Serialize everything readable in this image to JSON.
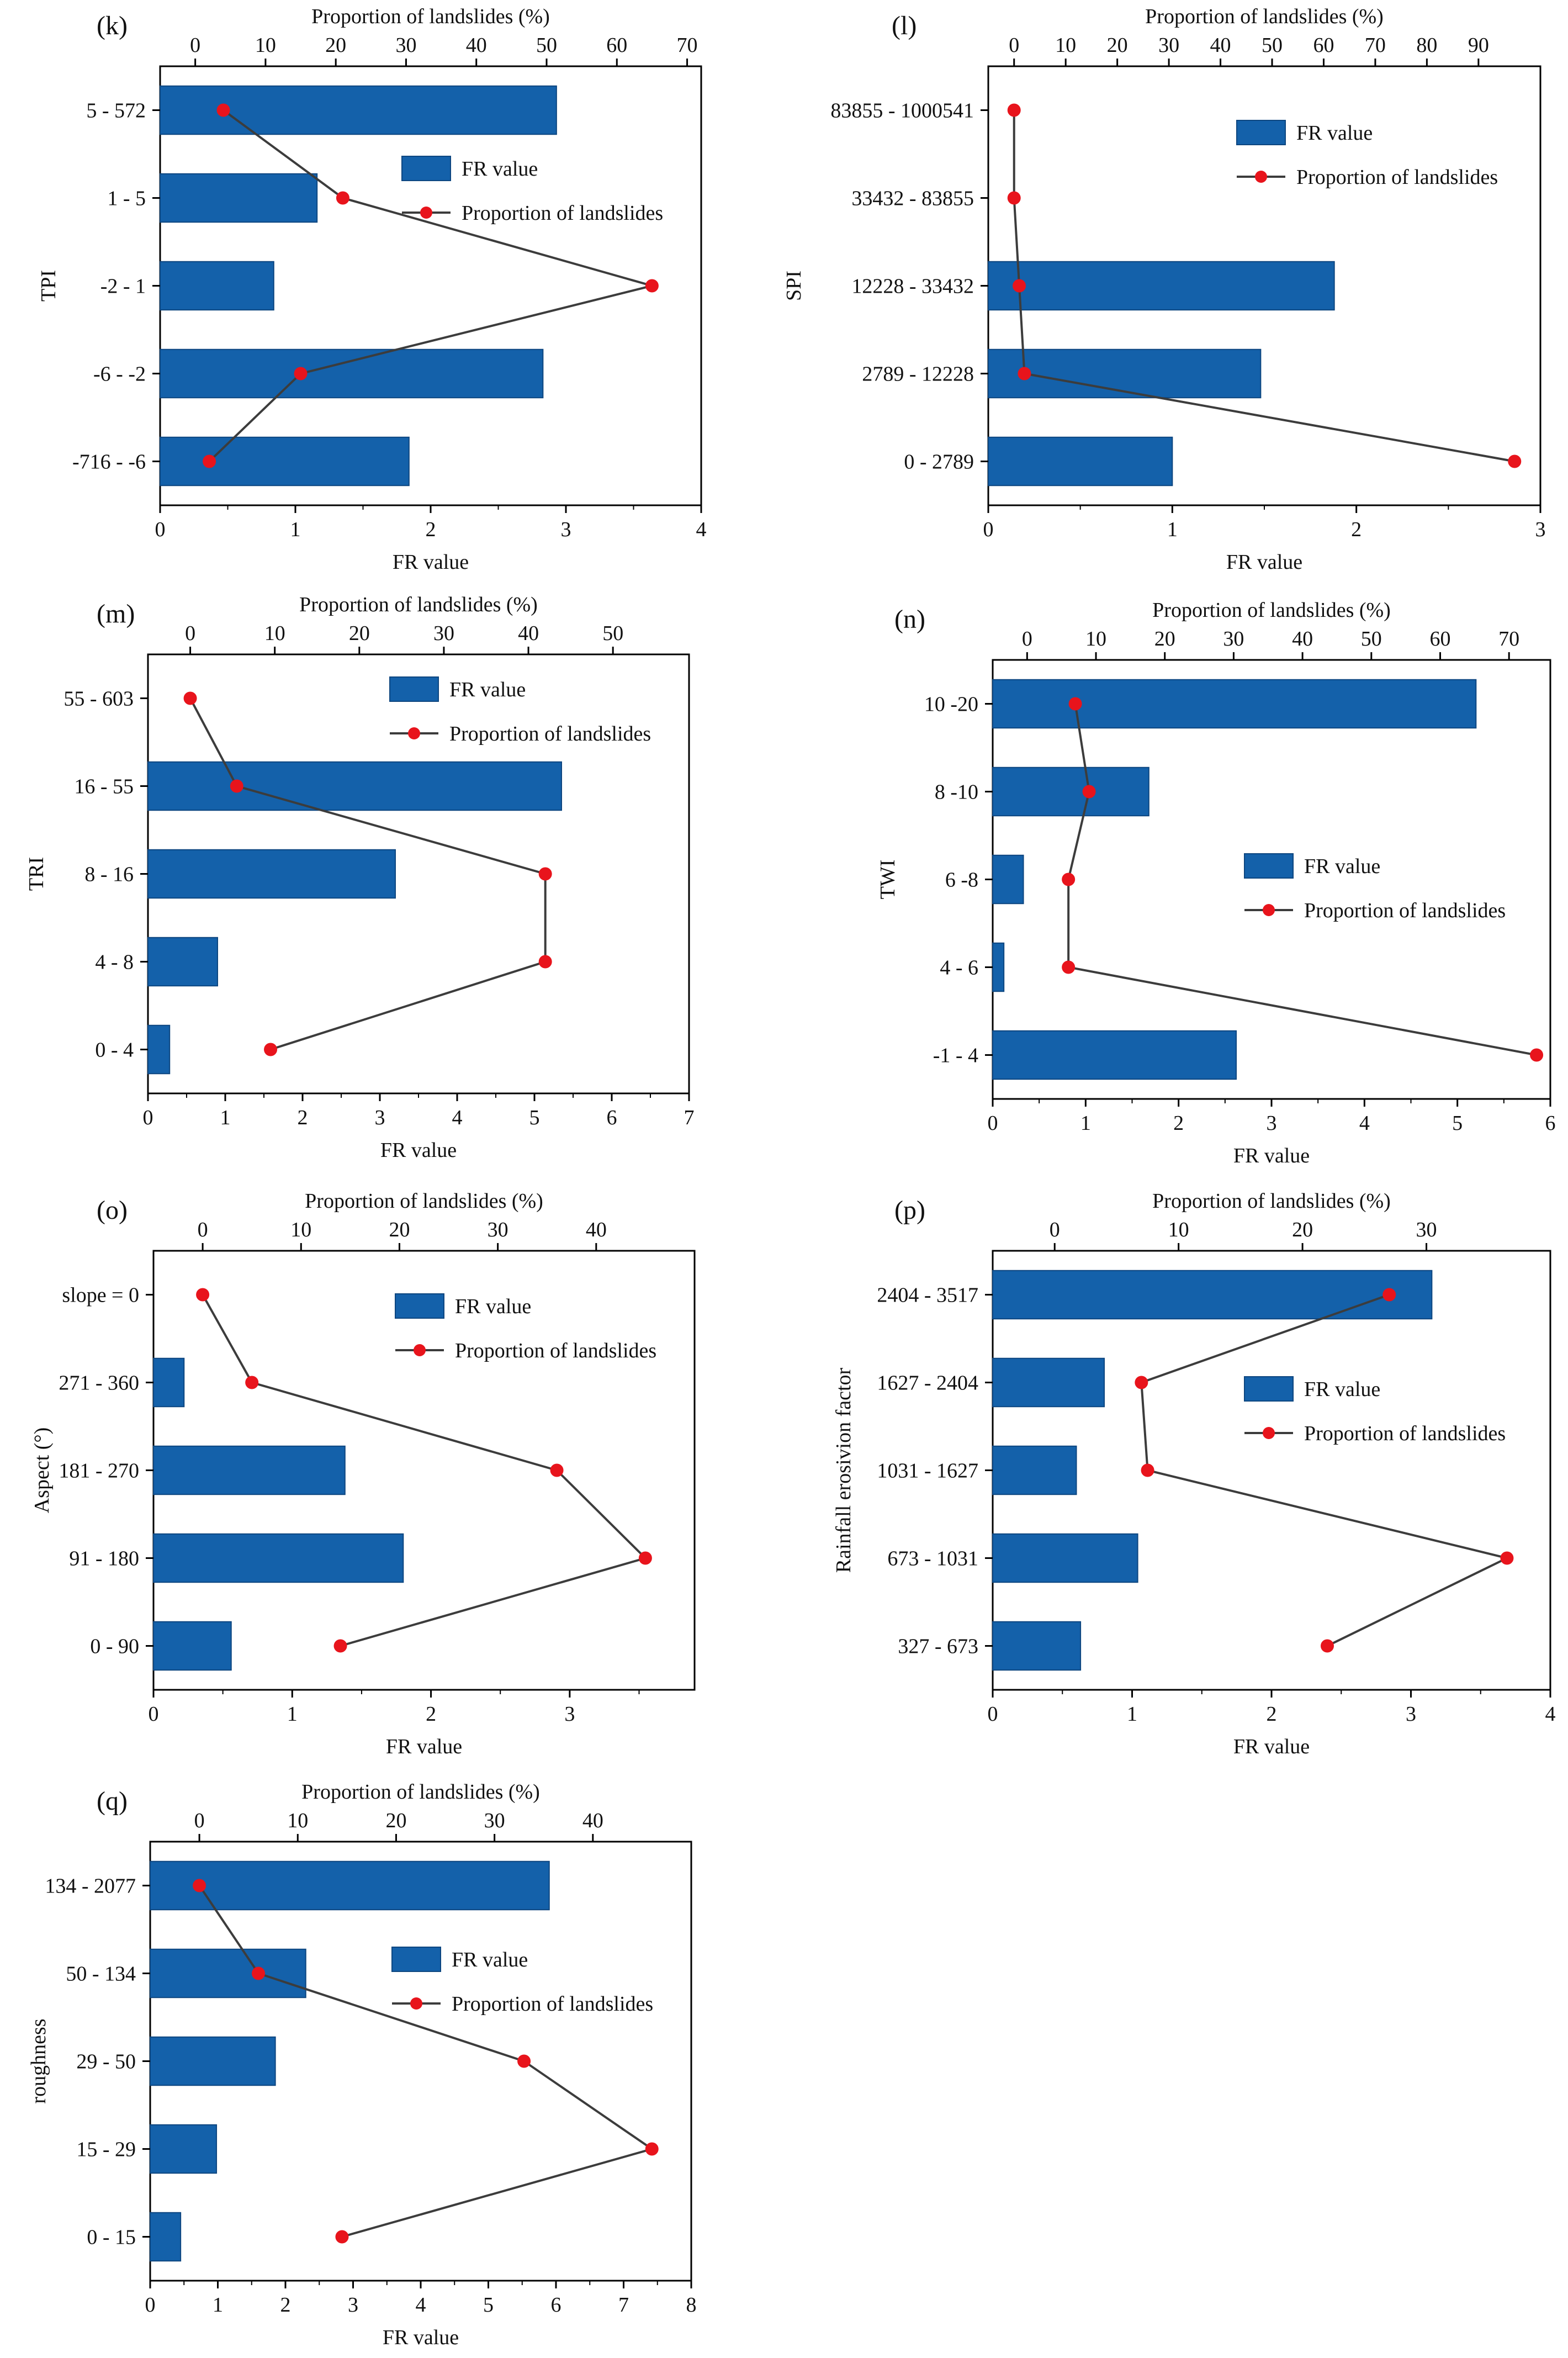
{
  "colors": {
    "bar": "#1461aa",
    "bar_stroke": "#0d4680",
    "line": "#3c3c3c",
    "marker": "#e8141c",
    "axis": "#000000"
  },
  "chart_data": [
    {
      "id": "k",
      "type": "bar+line",
      "panel_label": "(k)",
      "xlabel": "FR value",
      "x2label": "Proportion of landslides (%)",
      "ylabel": "TPI",
      "categories": [
        "5 - 572",
        "1 - 5",
        "-2 - 1",
        "-6 - -2",
        "-716 - -6"
      ],
      "series": [
        {
          "name": "FR value",
          "type": "bar",
          "axis": "bottom",
          "values": [
            2.93,
            1.16,
            0.84,
            2.83,
            1.84
          ]
        },
        {
          "name": "Proportion of landslides",
          "type": "line",
          "axis": "top",
          "values": [
            4,
            21,
            65,
            15,
            2
          ]
        }
      ],
      "xlim": [
        0,
        4
      ],
      "xticks": [
        "0",
        "1",
        "2",
        "3",
        "4"
      ],
      "x2lim": [
        -5,
        72
      ],
      "x2ticks": [
        "0",
        "10",
        "20",
        "30",
        "40",
        "50",
        "60",
        "70"
      ],
      "legend": [
        "FR value",
        "Proportion of landslides"
      ],
      "legend_position": "right-middle"
    },
    {
      "id": "l",
      "type": "bar+line",
      "panel_label": "(l)",
      "xlabel": "FR value",
      "x2label": "Proportion of landslides (%)",
      "ylabel": "SPI",
      "categories": [
        "83855 - 1000541",
        "33432 - 83855",
        "12228 - 33432",
        "2789 - 12228",
        "0 - 2789"
      ],
      "series": [
        {
          "name": "FR value",
          "type": "bar",
          "axis": "bottom",
          "values": [
            0,
            0,
            1.88,
            1.48,
            1.0
          ]
        },
        {
          "name": "Proportion of landslides",
          "type": "line",
          "axis": "top",
          "values": [
            0,
            0,
            1,
            2,
            97
          ]
        }
      ],
      "xlim": [
        0,
        3
      ],
      "xticks": [
        "0",
        "1",
        "2",
        "3"
      ],
      "x2lim": [
        -5,
        102
      ],
      "x2ticks": [
        "0",
        "10",
        "20",
        "30",
        "40",
        "50",
        "60",
        "70",
        "80",
        "90"
      ],
      "legend": [
        "FR value",
        "Proportion of landslides"
      ],
      "legend_position": "right-top"
    },
    {
      "id": "m",
      "type": "bar+line",
      "panel_label": "(m)",
      "xlabel": "FR value",
      "x2label": "Proportion of landslides (%)",
      "ylabel": "TRI",
      "categories": [
        "55 - 603",
        "16 - 55",
        "8 - 16",
        "4 - 8",
        "0 - 4"
      ],
      "series": [
        {
          "name": "FR value",
          "type": "bar",
          "axis": "bottom",
          "values": [
            0,
            5.35,
            3.2,
            0.9,
            0.28
          ]
        },
        {
          "name": "Proportion of landslides",
          "type": "line",
          "axis": "top",
          "values": [
            0,
            5.5,
            42,
            42,
            9.5
          ]
        }
      ],
      "xlim": [
        0,
        7
      ],
      "xticks": [
        "0",
        "1",
        "2",
        "3",
        "4",
        "5",
        "6",
        "7"
      ],
      "x2lim": [
        -5,
        59
      ],
      "x2ticks": [
        "0",
        "10",
        "20",
        "30",
        "40",
        "50"
      ],
      "legend": [
        "FR value",
        "Proportion of landslides"
      ],
      "legend_position": "right-top"
    },
    {
      "id": "n",
      "type": "bar+line",
      "panel_label": "(n)",
      "xlabel": "FR value",
      "x2label": "Proportion of landslides (%)",
      "ylabel": "TWI",
      "categories": [
        "10 -20",
        "8 -10",
        "6 -8",
        "4 - 6",
        "-1 - 4"
      ],
      "series": [
        {
          "name": "FR value",
          "type": "bar",
          "axis": "bottom",
          "values": [
            5.2,
            1.68,
            0.33,
            0.12,
            2.62
          ]
        },
        {
          "name": "Proportion of landslides",
          "type": "line",
          "axis": "top",
          "values": [
            7,
            9,
            6,
            6,
            74
          ]
        }
      ],
      "xlim": [
        0,
        6
      ],
      "xticks": [
        "0",
        "1",
        "2",
        "3",
        "4",
        "5",
        "6"
      ],
      "x2lim": [
        -5,
        76
      ],
      "x2ticks": [
        "0",
        "10",
        "20",
        "30",
        "40",
        "50",
        "60",
        "70"
      ],
      "legend": [
        "FR value",
        "Proportion of landslides"
      ],
      "legend_position": "right-middle"
    },
    {
      "id": "o",
      "type": "bar+line",
      "panel_label": "(o)",
      "xlabel": "FR value",
      "x2label": "Proportion of landslides (%)",
      "ylabel": "Aspect (°)",
      "categories": [
        "slope = 0",
        "271 - 360",
        "181 - 270",
        "91 - 180",
        "0 - 90"
      ],
      "series": [
        {
          "name": "FR value",
          "type": "bar",
          "axis": "bottom",
          "values": [
            0,
            0.22,
            1.38,
            1.8,
            0.56
          ]
        },
        {
          "name": "Proportion of landslides",
          "type": "line",
          "axis": "top",
          "values": [
            0,
            5,
            36,
            45,
            14
          ]
        }
      ],
      "xlim": [
        0,
        3.9
      ],
      "xticks": [
        "0",
        "1",
        "2",
        "3"
      ],
      "x2lim": [
        -5,
        50
      ],
      "x2ticks": [
        "0",
        "10",
        "20",
        "30",
        "40"
      ],
      "legend": [
        "FR value",
        "Proportion of landslides"
      ],
      "legend_position": "right-top"
    },
    {
      "id": "p",
      "type": "bar+line",
      "panel_label": "(p)",
      "xlabel": "FR value",
      "x2label": "Proportion of landslides (%)",
      "ylabel": "Rainfall erosivion factor",
      "categories": [
        "2404 - 3517",
        "1627 - 2404",
        "1031 - 1627",
        "673 - 1031",
        "327 - 673"
      ],
      "series": [
        {
          "name": "FR value",
          "type": "bar",
          "axis": "bottom",
          "values": [
            3.15,
            0.8,
            0.6,
            1.04,
            0.63
          ]
        },
        {
          "name": "Proportion of landslides",
          "type": "line",
          "axis": "top",
          "values": [
            27,
            7,
            7.5,
            36.5,
            22
          ]
        }
      ],
      "xlim": [
        0,
        4
      ],
      "xticks": [
        "0",
        "1",
        "2",
        "3",
        "4"
      ],
      "x2lim": [
        -5,
        40
      ],
      "x2ticks": [
        "0",
        "10",
        "20",
        "30"
      ],
      "legend": [
        "FR value",
        "Proportion of landslides"
      ],
      "legend_position": "right-upper"
    },
    {
      "id": "q",
      "type": "bar+line",
      "panel_label": "(q)",
      "xlabel": "FR value",
      "x2label": "Proportion of landslides (%)",
      "ylabel": "roughness",
      "categories": [
        "134 - 2077",
        "50 - 134",
        "29 - 50",
        "15 - 29",
        "0 - 15"
      ],
      "series": [
        {
          "name": "FR value",
          "type": "bar",
          "axis": "bottom",
          "values": [
            5.9,
            2.3,
            1.85,
            0.98,
            0.45
          ]
        },
        {
          "name": "Proportion of landslides",
          "type": "line",
          "axis": "top",
          "values": [
            0,
            6,
            33,
            46,
            14.5
          ]
        }
      ],
      "xlim": [
        0,
        8
      ],
      "xticks": [
        "0",
        "1",
        "2",
        "3",
        "4",
        "5",
        "6",
        "7",
        "8"
      ],
      "x2lim": [
        -5,
        50
      ],
      "x2ticks": [
        "0",
        "10",
        "20",
        "30",
        "40"
      ],
      "legend": [
        "FR value",
        "Proportion of landslides"
      ],
      "legend_position": "right-upper"
    }
  ]
}
